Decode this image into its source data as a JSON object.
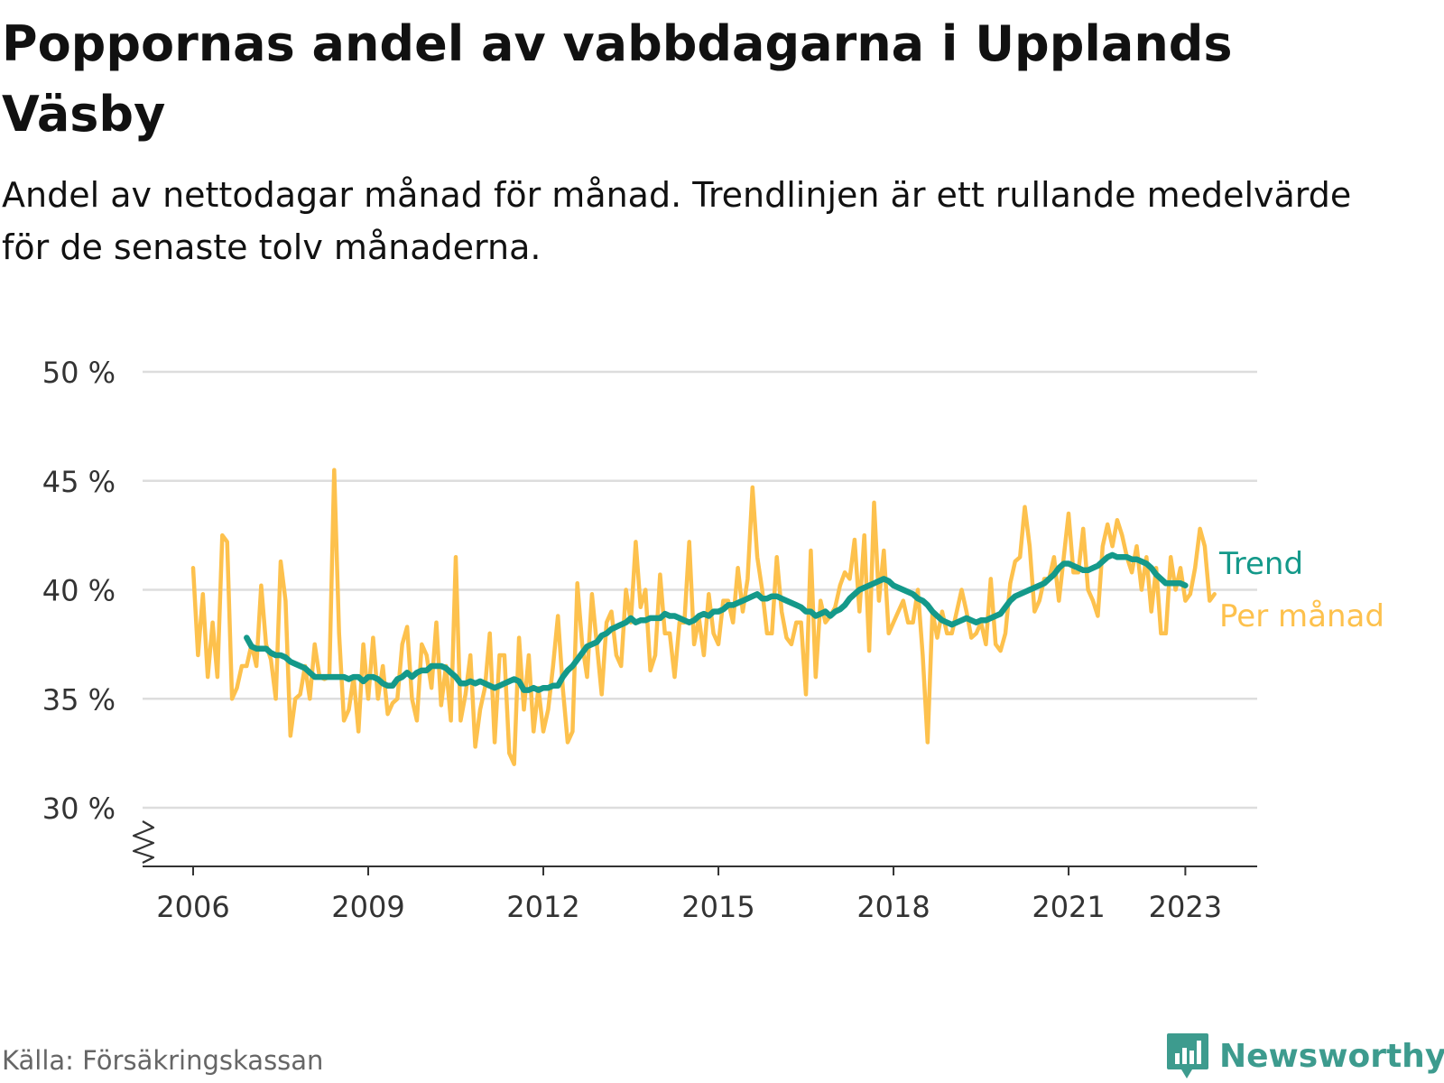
{
  "title": "Poppornas andel av vabbdagarna i Upplands Väsby",
  "subtitle": "Andel av nettodagar månad för månad. Trendlinjen är ett rullande medelvärde för de senaste tolv månaderna.",
  "source": "Källa: Försäkringskassan",
  "brand": {
    "name": "Newsworthy",
    "icon": "newsworthy-logo-icon"
  },
  "colors": {
    "monthly": "#fdc14d",
    "trend": "#14998a",
    "grid": "#dddddd",
    "axis": "#333333",
    "text": "#333333",
    "brand": "#3d9b8e"
  },
  "chart_data": {
    "type": "line",
    "title": "Poppornas andel av vabbdagarna i Upplands Väsby",
    "subtitle": "Andel av nettodagar månad för månad. Trendlinjen är ett rullande medelvärde för de senaste tolv månaderna.",
    "ylim": [
      30,
      50
    ],
    "y_ticks": [
      30,
      35,
      40,
      45,
      50
    ],
    "y_tick_labels": [
      "30 %",
      "35 %",
      "40 %",
      "45 %",
      "50 %"
    ],
    "y_axis_break": true,
    "x_range": [
      2006,
      2023.67
    ],
    "x_ticks": [
      2006,
      2009,
      2012,
      2015,
      2018,
      2021,
      2023
    ],
    "x_tick_labels": [
      "2006",
      "2009",
      "2012",
      "2015",
      "2018",
      "2021",
      "2023"
    ],
    "grid": true,
    "legend": "direct labels at line ends",
    "series": [
      {
        "name": "Per månad",
        "color": "#fdc14d",
        "x_start": 2006.0,
        "x_step": 0.0833333,
        "values": [
          41.0,
          37.0,
          39.8,
          36.0,
          38.5,
          36.0,
          42.5,
          42.2,
          35.0,
          35.5,
          36.5,
          36.5,
          37.5,
          36.5,
          40.2,
          37.5,
          36.8,
          35.0,
          41.3,
          39.5,
          33.3,
          35.0,
          35.2,
          36.5,
          35.0,
          37.5,
          36.0,
          35.9,
          36.0,
          45.5,
          38.0,
          34.0,
          34.5,
          36.0,
          33.5,
          37.5,
          35.0,
          37.8,
          35.0,
          36.5,
          34.3,
          34.8,
          35.0,
          37.5,
          38.3,
          35.0,
          34.0,
          37.5,
          37.0,
          35.5,
          38.5,
          34.7,
          36.5,
          34.0,
          41.5,
          34.0,
          35.2,
          37.0,
          32.8,
          34.5,
          35.5,
          38.0,
          33.0,
          37.0,
          37.0,
          32.5,
          32.0,
          37.8,
          34.5,
          37.0,
          33.5,
          35.5,
          33.5,
          34.5,
          36.5,
          38.8,
          35.5,
          33.0,
          33.5,
          40.3,
          37.5,
          36.0,
          39.8,
          37.5,
          35.2,
          38.5,
          39.0,
          37.0,
          36.5,
          40.0,
          38.5,
          42.2,
          39.2,
          40.0,
          36.3,
          37.0,
          40.7,
          38.0,
          38.0,
          36.0,
          38.5,
          38.5,
          42.2,
          37.5,
          38.7,
          37.0,
          39.8,
          38.0,
          37.5,
          39.5,
          39.5,
          38.5,
          41.0,
          39.0,
          40.5,
          44.7,
          41.5,
          40.0,
          38.0,
          38.0,
          41.5,
          39.0,
          37.8,
          37.5,
          38.5,
          38.5,
          35.2,
          41.8,
          36.0,
          39.5,
          38.5,
          38.8,
          39.2,
          40.2,
          40.8,
          40.5,
          42.3,
          39.0,
          42.5,
          37.2,
          44.0,
          39.5,
          41.8,
          38.0,
          38.5,
          39.0,
          39.5,
          38.5,
          38.5,
          40.0,
          37.0,
          33.0,
          39.0,
          37.8,
          39.0,
          38.0,
          38.0,
          39.0,
          40.0,
          39.0,
          37.8,
          38.0,
          38.5,
          37.5,
          40.5,
          37.5,
          37.2,
          38.0,
          40.3,
          41.3,
          41.5,
          43.8,
          42.0,
          39.0,
          39.5,
          40.5,
          40.5,
          41.5,
          39.5,
          41.5,
          43.5,
          40.8,
          40.8,
          42.8,
          40.0,
          39.5,
          38.8,
          42.0,
          43.0,
          42.0,
          43.2,
          42.5,
          41.5,
          40.8,
          42.0,
          40.0,
          41.5,
          39.0,
          41.0,
          38.0,
          38.0,
          41.5,
          40.0,
          41.0,
          39.5,
          39.8,
          41.0,
          42.8,
          42.0,
          39.5,
          39.8
        ]
      },
      {
        "name": "Trend",
        "color": "#14998a",
        "x_start": 2006.9167,
        "x_step": 0.0833333,
        "values": [
          37.8,
          37.4,
          37.3,
          37.3,
          37.3,
          37.1,
          37.0,
          37.0,
          36.9,
          36.7,
          36.6,
          36.5,
          36.4,
          36.2,
          36.0,
          36.0,
          36.0,
          36.0,
          36.0,
          36.0,
          36.0,
          35.9,
          36.0,
          36.0,
          35.8,
          36.0,
          36.0,
          35.9,
          35.7,
          35.6,
          35.6,
          35.9,
          36.0,
          36.2,
          36.0,
          36.2,
          36.3,
          36.3,
          36.5,
          36.5,
          36.5,
          36.4,
          36.2,
          36.0,
          35.7,
          35.7,
          35.8,
          35.7,
          35.8,
          35.7,
          35.6,
          35.5,
          35.6,
          35.7,
          35.8,
          35.9,
          35.8,
          35.4,
          35.4,
          35.5,
          35.4,
          35.5,
          35.5,
          35.6,
          35.6,
          36.0,
          36.3,
          36.5,
          36.8,
          37.1,
          37.4,
          37.5,
          37.6,
          37.9,
          38.0,
          38.2,
          38.3,
          38.4,
          38.5,
          38.7,
          38.5,
          38.6,
          38.6,
          38.7,
          38.7,
          38.7,
          38.9,
          38.8,
          38.8,
          38.7,
          38.6,
          38.5,
          38.6,
          38.8,
          38.9,
          38.8,
          39.0,
          39.0,
          39.1,
          39.3,
          39.3,
          39.4,
          39.5,
          39.6,
          39.7,
          39.8,
          39.6,
          39.6,
          39.7,
          39.7,
          39.6,
          39.5,
          39.4,
          39.3,
          39.2,
          39.0,
          39.0,
          38.8,
          38.9,
          39.0,
          38.8,
          39.0,
          39.1,
          39.3,
          39.6,
          39.8,
          40.0,
          40.1,
          40.2,
          40.3,
          40.4,
          40.5,
          40.4,
          40.2,
          40.1,
          40.0,
          39.9,
          39.8,
          39.6,
          39.5,
          39.3,
          39.0,
          38.8,
          38.6,
          38.5,
          38.4,
          38.5,
          38.6,
          38.7,
          38.6,
          38.5,
          38.6,
          38.6,
          38.7,
          38.8,
          38.9,
          39.2,
          39.5,
          39.7,
          39.8,
          39.9,
          40.0,
          40.1,
          40.2,
          40.3,
          40.5,
          40.7,
          41.0,
          41.2,
          41.2,
          41.1,
          41.0,
          40.9,
          40.9,
          41.0,
          41.1,
          41.3,
          41.5,
          41.6,
          41.5,
          41.5,
          41.5,
          41.4,
          41.4,
          41.3,
          41.2,
          41.0,
          40.7,
          40.5,
          40.3,
          40.3,
          40.3,
          40.3,
          40.2
        ]
      }
    ]
  }
}
